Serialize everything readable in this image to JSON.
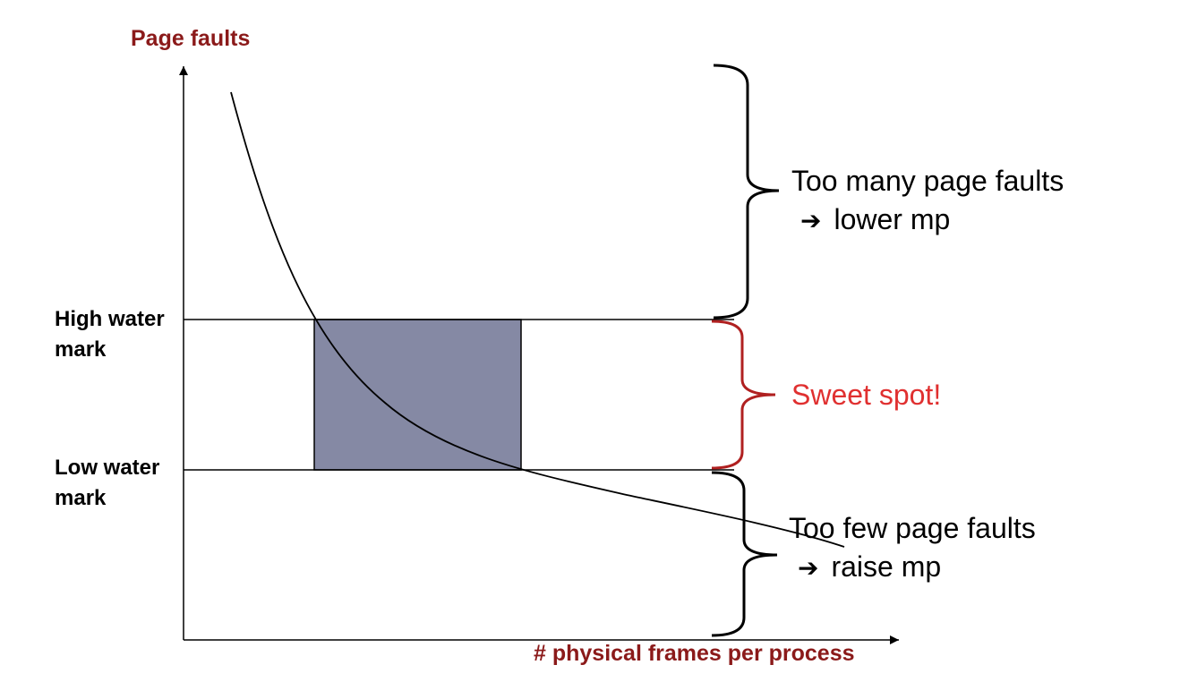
{
  "y_axis_label": "Page faults",
  "x_axis_label": "# physical frames per process",
  "high_mark": {
    "line1": "High water",
    "line2": "mark"
  },
  "low_mark": {
    "line1": "Low water",
    "line2": "mark"
  },
  "notes": {
    "top": {
      "line1": "Too many page faults",
      "arrow": "➔",
      "line2": "lower mp"
    },
    "middle": {
      "text": "Sweet spot!"
    },
    "bottom": {
      "line1": "Too few page faults",
      "arrow": "➔",
      "line2": "raise mp"
    }
  },
  "colors": {
    "axis_label": "#8b1a1a",
    "sweet_spot": "#e03030",
    "sweet_brace": "#b02020",
    "box_fill": "#8589a4",
    "ink": "#000000"
  }
}
